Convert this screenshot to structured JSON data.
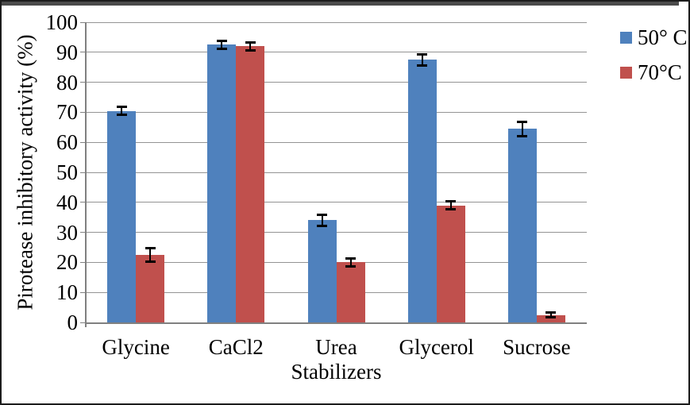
{
  "figure": {
    "background": "#FFFFFF",
    "border_color": "#1C1C1C",
    "top_strip_color": "#4B4B4B"
  },
  "chart_data": {
    "type": "bar",
    "title": "",
    "xlabel": "Stabilizers",
    "ylabel": "Pirotease inhibitory activity (%)",
    "categories": [
      "Glycine",
      "CaCl2",
      "Urea",
      "Glycerol",
      "Sucrose"
    ],
    "series": [
      {
        "name": "50° C",
        "color": "#4F81BD",
        "values": [
          70.5,
          92.5,
          34,
          87.5,
          64.5
        ],
        "errors": [
          1.5,
          1.5,
          2,
          2,
          2.5
        ]
      },
      {
        "name": "70°C",
        "color": "#C0504D",
        "values": [
          22.5,
          92,
          20,
          39,
          2.5
        ],
        "errors": [
          2.5,
          1.5,
          1.5,
          1.5,
          1
        ]
      }
    ],
    "ylim": [
      0,
      100
    ],
    "ytick_step": 10,
    "ytick_labels": [
      "0",
      "10",
      "20",
      "30",
      "40",
      "50",
      "60",
      "70",
      "80",
      "90",
      "100"
    ],
    "grid": "horizontal gridlines every 10, on",
    "legend_position": "top-right",
    "error_bars": true,
    "colors": {
      "grid": "#949494",
      "axis": "#808080",
      "error_bar": "#000000"
    }
  }
}
